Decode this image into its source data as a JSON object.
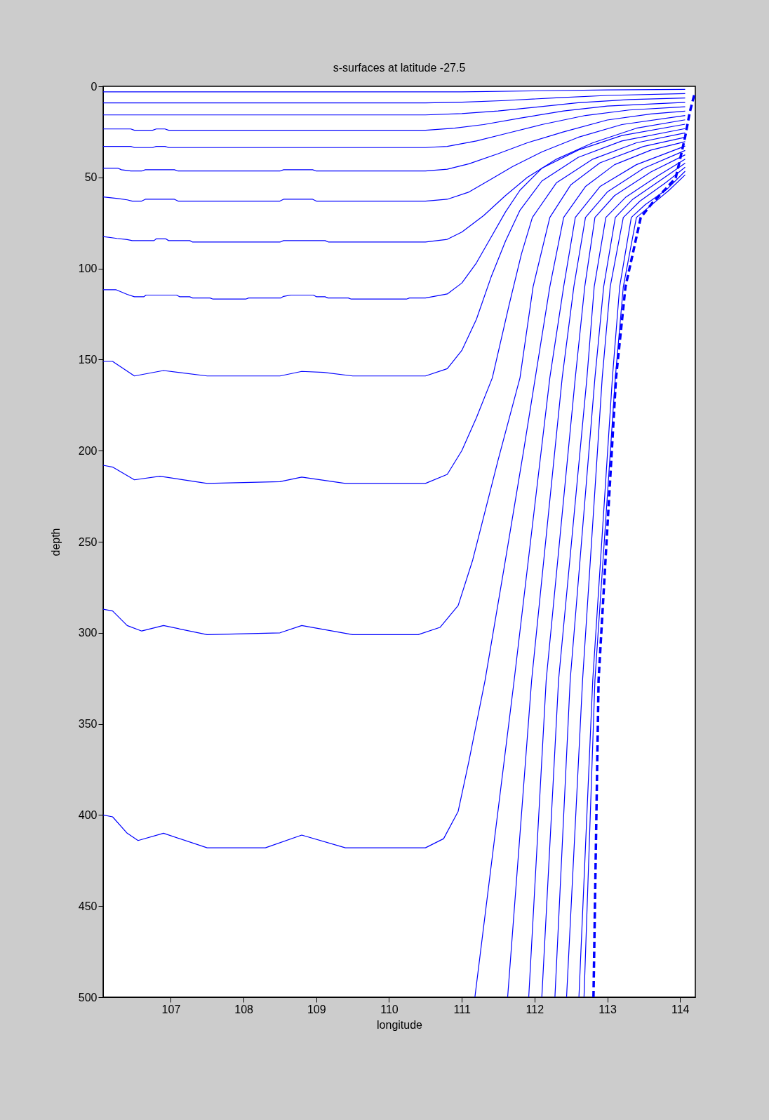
{
  "chart_data": {
    "type": "line",
    "title": "s-surfaces at latitude -27.5",
    "xlabel": "longitude",
    "ylabel": "depth",
    "xlim": [
      106.07,
      114.21
    ],
    "ylim": [
      500,
      0
    ],
    "xticks": [
      107,
      108,
      109,
      110,
      111,
      112,
      113,
      114
    ],
    "yticks": [
      0,
      50,
      100,
      150,
      200,
      250,
      300,
      350,
      400,
      450,
      500
    ],
    "grid": false,
    "legend": false,
    "marker": "none",
    "series": [
      {
        "color": "#0000ff",
        "line_style": "solid",
        "x": [
          106.07,
          111.0,
          112.0,
          113.0,
          114.07
        ],
        "values": [
          3,
          3,
          2.5,
          2,
          1.7
        ]
      },
      {
        "color": "#0000ff",
        "line_style": "solid",
        "x": [
          106.07,
          110.5,
          111.0,
          111.6,
          112.3,
          113.0,
          114.07
        ],
        "values": [
          9.1,
          9.1,
          8.7,
          7.8,
          6.3,
          5,
          4.0
        ]
      },
      {
        "color": "#0000ff",
        "line_style": "solid",
        "x": [
          106.07,
          110.5,
          111.0,
          111.5,
          112.0,
          112.6,
          113.3,
          114.07
        ],
        "values": [
          15.7,
          15.7,
          15,
          13.5,
          11.5,
          9,
          7.3,
          6.4
        ]
      },
      {
        "color": "#0000ff",
        "line_style": "solid",
        "x": [
          106.07,
          106.45,
          106.5,
          106.75,
          106.8,
          106.92,
          106.97,
          110.5,
          110.9,
          111.3,
          111.8,
          112.4,
          113.0,
          114.07
        ],
        "values": [
          23.4,
          23.4,
          24.1,
          24.1,
          23.4,
          23.4,
          24.1,
          24.1,
          23,
          21,
          17.5,
          13.5,
          10.8,
          8.8
        ]
      },
      {
        "color": "#0000ff",
        "line_style": "solid",
        "x": [
          106.07,
          106.45,
          106.5,
          106.75,
          106.8,
          106.92,
          106.97,
          110.5,
          110.8,
          111.2,
          111.6,
          112.1,
          112.7,
          113.3,
          114.07
        ],
        "values": [
          33,
          33,
          33.6,
          33.6,
          33,
          33,
          33.6,
          33.6,
          33,
          30,
          26,
          21,
          16,
          13,
          11.2
        ]
      },
      {
        "color": "#0000ff",
        "line_style": "solid",
        "x": [
          106.07,
          106.27,
          106.32,
          106.45,
          106.6,
          106.65,
          107.05,
          107.1,
          108.5,
          108.55,
          108.95,
          109.0,
          110.5,
          110.8,
          111.1,
          111.5,
          111.9,
          112.4,
          113.0,
          113.6,
          114.07
        ],
        "values": [
          44.9,
          44.9,
          45.8,
          46.5,
          46.5,
          45.8,
          45.8,
          46.5,
          46.5,
          45.8,
          45.8,
          46.5,
          46.5,
          45.5,
          42.5,
          37,
          31,
          25,
          18.5,
          15.2,
          13.6
        ]
      },
      {
        "color": "#0000ff",
        "line_style": "solid",
        "x": [
          106.07,
          106.27,
          106.4,
          106.47,
          106.6,
          106.65,
          107.05,
          107.1,
          108.5,
          108.55,
          108.95,
          109.0,
          110.5,
          110.8,
          111.1,
          111.4,
          111.7,
          112.1,
          112.6,
          113.2,
          114.07
        ],
        "values": [
          60.7,
          61.6,
          62.3,
          63,
          63,
          62,
          62,
          63,
          63,
          62,
          62,
          63,
          63,
          62,
          58,
          51,
          44,
          36,
          28,
          21,
          16
        ]
      },
      {
        "color": "#0000ff",
        "line_style": "solid",
        "x": [
          106.07,
          106.26,
          106.4,
          106.47,
          106.77,
          106.8,
          106.93,
          106.97,
          107.26,
          107.3,
          108.5,
          108.55,
          109.12,
          109.17,
          110.5,
          110.8,
          111.0,
          111.3,
          111.6,
          111.9,
          112.3,
          112.8,
          113.4,
          114.07
        ],
        "values": [
          82.5,
          83.5,
          84.1,
          84.7,
          84.7,
          83.7,
          83.7,
          84.7,
          84.7,
          85.5,
          85.5,
          84.7,
          84.7,
          85.5,
          85.5,
          84,
          80,
          71,
          60,
          50,
          40,
          31,
          23,
          18.4
        ]
      },
      {
        "color": "#0000ff",
        "line_style": "solid",
        "x": [
          106.07,
          106.25,
          106.4,
          106.5,
          106.63,
          106.66,
          107.08,
          107.12,
          107.26,
          107.3,
          107.54,
          107.58,
          108.03,
          108.07,
          108.51,
          108.55,
          108.65,
          108.96,
          109.0,
          109.12,
          109.16,
          109.44,
          109.48,
          110.24,
          110.28,
          110.5,
          110.8,
          111.0,
          111.2,
          111.4,
          111.6,
          111.8,
          112.1,
          112.6,
          113.2,
          114.07
        ],
        "values": [
          111.7,
          111.7,
          114.2,
          115.5,
          115.5,
          114.6,
          114.6,
          115.5,
          115.5,
          116.2,
          116.2,
          116.8,
          116.8,
          116.2,
          116.2,
          115.3,
          114.6,
          114.6,
          115.5,
          115.5,
          116.2,
          116.2,
          116.8,
          116.8,
          116.2,
          116.2,
          114,
          108,
          97,
          83,
          69,
          57,
          45,
          35,
          27,
          20.8
        ]
      },
      {
        "color": "#0000ff",
        "line_style": "solid",
        "x": [
          106.07,
          106.2,
          106.5,
          106.9,
          107.5,
          108.5,
          108.8,
          109.1,
          109.5,
          110.5,
          110.8,
          111.0,
          111.2,
          111.4,
          111.6,
          111.8,
          112.1,
          112.6,
          113.2,
          114.07
        ],
        "values": [
          151,
          151,
          159,
          156,
          159,
          159,
          156.5,
          157,
          159,
          159,
          155,
          145,
          128,
          105,
          85,
          68,
          52,
          39,
          30,
          23.2
        ]
      },
      {
        "color": "#0000ff",
        "line_style": "solid",
        "x": [
          106.07,
          106.2,
          106.5,
          106.85,
          107.5,
          108.5,
          108.8,
          109.4,
          110.5,
          110.8,
          111.0,
          111.2,
          111.42,
          111.65,
          111.82,
          111.97,
          112.3,
          112.8,
          113.4,
          114.07
        ],
        "values": [
          208,
          209,
          216,
          214,
          218,
          217,
          214.5,
          218,
          218,
          213,
          200,
          182,
          160,
          120,
          92,
          72,
          53,
          40,
          31,
          25.6
        ]
      },
      {
        "color": "#0000ff",
        "line_style": "solid",
        "x": [
          106.07,
          106.2,
          106.4,
          106.6,
          106.9,
          107.5,
          108.5,
          108.8,
          109.5,
          110.4,
          110.7,
          110.95,
          111.15,
          111.5,
          111.8,
          111.98,
          112.21,
          112.5,
          112.9,
          113.5,
          114.07
        ],
        "values": [
          287,
          288,
          296,
          299,
          296,
          301,
          300,
          296,
          301,
          301,
          297,
          285,
          260,
          205,
          160,
          110,
          72,
          54,
          42,
          33,
          28
        ]
      },
      {
        "color": "#0000ff",
        "line_style": "solid",
        "x": [
          106.07,
          106.2,
          106.4,
          106.55,
          106.9,
          107.5,
          108.3,
          108.8,
          109.4,
          110.5,
          110.75,
          110.95,
          111.1,
          111.32,
          111.6,
          111.85,
          112.01,
          112.21,
          112.4,
          112.7,
          113.1,
          113.6,
          114.07
        ],
        "values": [
          400,
          401,
          410,
          414,
          410,
          418,
          418,
          411,
          418,
          418,
          413,
          398,
          370,
          326,
          260,
          200,
          160,
          110,
          72,
          55,
          43,
          35,
          30.4
        ]
      },
      {
        "color": "#0000ff",
        "line_style": "solid",
        "x": [
          111.18,
          111.72,
          112.21,
          112.4,
          112.56,
          112.9,
          113.4,
          114.07
        ],
        "values": [
          500,
          326,
          160,
          110,
          72,
          55,
          43,
          32.8
        ]
      },
      {
        "color": "#0000ff",
        "line_style": "solid",
        "x": [
          111.63,
          111.96,
          112.38,
          112.54,
          112.7,
          113.0,
          113.5,
          114.07
        ],
        "values": [
          500,
          326,
          160,
          110,
          72,
          58,
          45,
          35.2
        ]
      },
      {
        "color": "#0000ff",
        "line_style": "solid",
        "x": [
          111.92,
          112.16,
          112.56,
          112.69,
          112.83,
          113.1,
          113.6,
          114.07
        ],
        "values": [
          500,
          326,
          160,
          110,
          72,
          60,
          47,
          37.6
        ]
      },
      {
        "color": "#0000ff",
        "line_style": "solid",
        "x": [
          112.1,
          112.33,
          112.72,
          112.82,
          112.98,
          113.25,
          113.7,
          114.07
        ],
        "values": [
          500,
          326,
          160,
          110,
          72,
          61,
          49,
          40
        ]
      },
      {
        "color": "#0000ff",
        "line_style": "solid",
        "x": [
          112.28,
          112.49,
          112.83,
          112.95,
          113.11,
          113.35,
          113.75,
          114.07
        ],
        "values": [
          500,
          326,
          160,
          110,
          72,
          62,
          51,
          42.2
        ]
      },
      {
        "color": "#0000ff",
        "line_style": "solid",
        "x": [
          112.44,
          112.66,
          112.93,
          113.04,
          113.22,
          113.45,
          113.8,
          114.07
        ],
        "values": [
          500,
          326,
          160,
          110,
          72,
          63,
          53,
          44.4
        ]
      },
      {
        "color": "#0000ff",
        "line_style": "solid",
        "x": [
          112.61,
          112.8,
          113.07,
          113.17,
          113.33,
          113.52,
          113.82,
          114.07
        ],
        "values": [
          500,
          326,
          160,
          110,
          72,
          65,
          56.5,
          46.6
        ]
      },
      {
        "color": "#0000ff",
        "line_style": "solid",
        "x": [
          112.68,
          112.83,
          113.11,
          113.22,
          113.4,
          113.58,
          113.85,
          114.07
        ],
        "values": [
          500,
          326,
          160,
          110,
          72,
          66,
          57,
          48.6
        ]
      },
      {
        "color": "#0000ff",
        "line_style": "dashed",
        "x": [
          112.81,
          112.88,
          113.12,
          113.25,
          113.46,
          113.62,
          113.81,
          113.94,
          114.006,
          114.07,
          114.135,
          114.2
        ],
        "values": [
          500,
          326,
          160,
          110,
          72,
          64,
          56,
          50.3,
          39,
          27.7,
          14,
          3.9
        ]
      }
    ]
  }
}
